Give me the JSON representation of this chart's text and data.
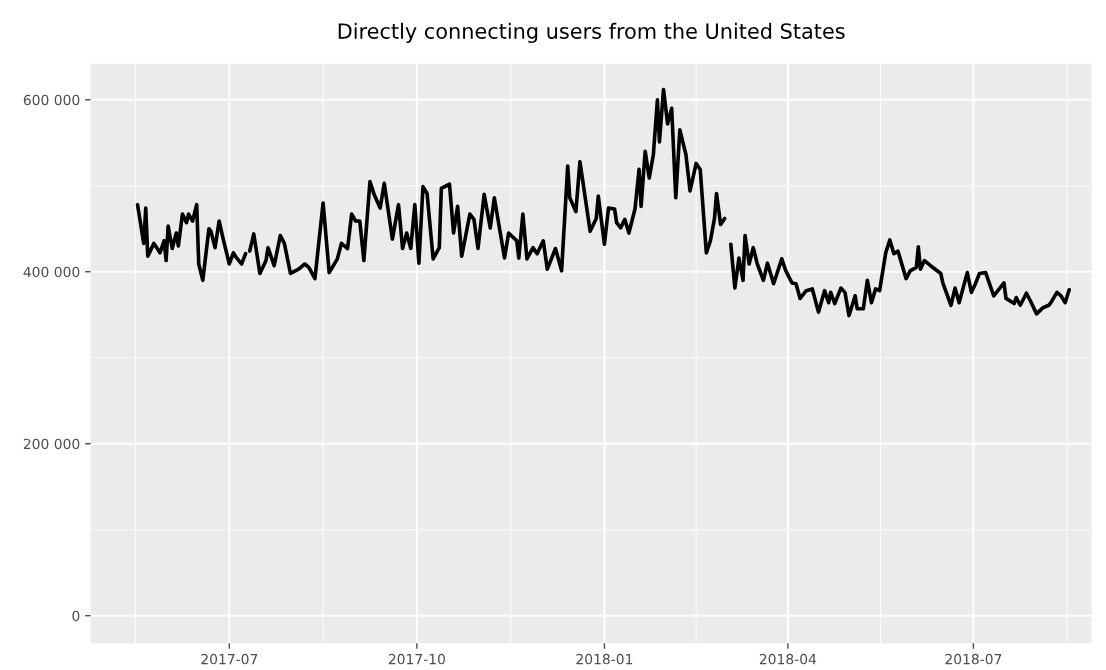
{
  "chart_data": {
    "type": "line",
    "title": "Directly connecting users from the United States",
    "xlim": [
      "2017-04-24",
      "2018-08-28"
    ],
    "xticks": [
      {
        "value": "2017-07-01",
        "label": "2017-07"
      },
      {
        "value": "2017-10-01",
        "label": "2017-10"
      },
      {
        "value": "2018-01-01",
        "label": "2018-01"
      },
      {
        "value": "2018-04-01",
        "label": "2018-04"
      },
      {
        "value": "2018-07-01",
        "label": "2018-07"
      }
    ],
    "ylim": [
      -32000,
      642000
    ],
    "yticks": [
      {
        "value": 0,
        "label": "0"
      },
      {
        "value": 200000,
        "label": "200 000"
      },
      {
        "value": 400000,
        "label": "400 000"
      },
      {
        "value": 600000,
        "label": "600 000"
      }
    ],
    "grid": true,
    "marker": "none",
    "line_style": "solid",
    "series": [
      {
        "color": "#000000",
        "x": [
          "2017-05-17",
          "2017-05-20",
          "2017-05-21",
          "2017-05-22",
          "2017-05-25",
          "2017-05-28",
          "2017-05-30",
          "2017-05-31",
          "2017-06-01",
          "2017-06-03",
          "2017-06-05",
          "2017-06-06",
          "2017-06-08",
          "2017-06-10",
          "2017-06-11",
          "2017-06-13",
          "2017-06-15",
          "2017-06-16",
          "2017-06-18",
          "2017-06-21",
          "2017-06-22",
          "2017-06-24",
          "2017-06-26",
          "2017-06-28",
          "2017-07-01",
          "2017-07-03",
          "2017-07-04",
          "2017-07-07",
          "2017-07-09",
          "2017-07-10",
          "2017-07-11",
          "2017-07-13",
          "2017-07-16",
          "2017-07-19",
          "2017-07-20",
          "2017-07-23",
          "2017-07-26",
          "2017-07-28",
          "2017-07-31",
          "2017-08-04",
          "2017-08-07",
          "2017-08-09",
          "2017-08-12",
          "2017-08-16",
          "2017-08-19",
          "2017-08-23",
          "2017-08-25",
          "2017-08-28",
          "2017-08-30",
          "2017-09-01",
          "2017-09-03",
          "2017-09-05",
          "2017-09-08",
          "2017-09-10",
          "2017-09-13",
          "2017-09-15",
          "2017-09-19",
          "2017-09-22",
          "2017-09-24",
          "2017-09-26",
          "2017-09-28",
          "2017-09-30",
          "2017-10-02",
          "2017-10-04",
          "2017-10-06",
          "2017-10-09",
          "2017-10-12",
          "2017-10-13",
          "2017-10-17",
          "2017-10-19",
          "2017-10-21",
          "2017-10-23",
          "2017-10-27",
          "2017-10-29",
          "2017-10-31",
          "2017-11-03",
          "2017-11-06",
          "2017-11-08",
          "2017-11-13",
          "2017-11-15",
          "2017-11-19",
          "2017-11-20",
          "2017-11-22",
          "2017-11-24",
          "2017-11-27",
          "2017-11-29",
          "2017-12-02",
          "2017-12-04",
          "2017-12-08",
          "2017-12-11",
          "2017-12-14",
          "2017-12-15",
          "2017-12-18",
          "2017-12-20",
          "2017-12-25",
          "2017-12-28",
          "2017-12-29",
          "2018-01-01",
          "2018-01-03",
          "2018-01-06",
          "2018-01-07",
          "2018-01-09",
          "2018-01-11",
          "2018-01-13",
          "2018-01-16",
          "2018-01-18",
          "2018-01-19",
          "2018-01-21",
          "2018-01-23",
          "2018-01-25",
          "2018-01-27",
          "2018-01-28",
          "2018-01-30",
          "2018-02-01",
          "2018-02-03",
          "2018-02-05",
          "2018-02-07",
          "2018-02-10",
          "2018-02-12",
          "2018-02-15",
          "2018-02-17",
          "2018-02-20",
          "2018-02-22",
          "2018-02-24",
          "2018-02-25",
          "2018-02-27",
          "2018-03-01",
          "2018-03-02",
          "2018-03-04",
          "2018-03-06",
          "2018-03-08",
          "2018-03-10",
          "2018-03-11",
          "2018-03-13",
          "2018-03-15",
          "2018-03-17",
          "2018-03-20",
          "2018-03-22",
          "2018-03-25",
          "2018-03-29",
          "2018-03-31",
          "2018-04-03",
          "2018-04-05",
          "2018-04-07",
          "2018-04-10",
          "2018-04-13",
          "2018-04-16",
          "2018-04-19",
          "2018-04-21",
          "2018-04-22",
          "2018-04-24",
          "2018-04-27",
          "2018-04-29",
          "2018-05-01",
          "2018-05-04",
          "2018-05-05",
          "2018-05-08",
          "2018-05-10",
          "2018-05-12",
          "2018-05-14",
          "2018-05-16",
          "2018-05-19",
          "2018-05-21",
          "2018-05-23",
          "2018-05-25",
          "2018-05-29",
          "2018-05-31",
          "2018-06-03",
          "2018-06-04",
          "2018-06-05",
          "2018-06-07",
          "2018-06-10",
          "2018-06-15",
          "2018-06-16",
          "2018-06-20",
          "2018-06-22",
          "2018-06-24",
          "2018-06-28",
          "2018-06-30",
          "2018-07-02",
          "2018-07-04",
          "2018-07-07",
          "2018-07-11",
          "2018-07-16",
          "2018-07-17",
          "2018-07-21",
          "2018-07-22",
          "2018-07-24",
          "2018-07-27",
          "2018-07-29",
          "2018-08-01",
          "2018-08-04",
          "2018-08-07",
          "2018-08-08",
          "2018-08-11",
          "2018-08-13",
          "2018-08-15",
          "2018-08-17"
        ],
        "values": [
          478000,
          433000,
          474000,
          418000,
          433000,
          422000,
          436000,
          413000,
          453000,
          427000,
          445000,
          430000,
          467000,
          457000,
          467000,
          459000,
          478000,
          409000,
          390000,
          450000,
          447000,
          428000,
          459000,
          438000,
          409000,
          422000,
          418000,
          409000,
          421000,
          null,
          424000,
          444000,
          398000,
          413000,
          428000,
          407000,
          442000,
          433000,
          398000,
          403000,
          409000,
          405000,
          392000,
          480000,
          399000,
          415000,
          433000,
          427000,
          467000,
          459000,
          459000,
          413000,
          505000,
          490000,
          474000,
          503000,
          438000,
          478000,
          427000,
          445000,
          427000,
          478000,
          410000,
          499000,
          491000,
          415000,
          428000,
          497000,
          502000,
          445000,
          476000,
          418000,
          467000,
          461000,
          427000,
          490000,
          451000,
          486000,
          416000,
          445000,
          436000,
          416000,
          467000,
          415000,
          428000,
          421000,
          436000,
          403000,
          427000,
          401000,
          523000,
          486000,
          470000,
          528000,
          447000,
          462000,
          488000,
          432000,
          474000,
          473000,
          457000,
          451000,
          461000,
          445000,
          473000,
          519000,
          476000,
          540000,
          509000,
          536000,
          600000,
          551000,
          612000,
          572000,
          590000,
          486000,
          565000,
          536000,
          494000,
          526000,
          519000,
          422000,
          436000,
          462000,
          491000,
          455000,
          462000,
          null,
          432000,
          381000,
          416000,
          390000,
          442000,
          409000,
          428000,
          409000,
          390000,
          410000,
          386000,
          415000,
          401000,
          387000,
          386000,
          369000,
          378000,
          380000,
          353000,
          378000,
          364000,
          376000,
          363000,
          381000,
          376000,
          349000,
          372000,
          357000,
          357000,
          390000,
          364000,
          380000,
          378000,
          422000,
          437000,
          421000,
          424000,
          392000,
          401000,
          405000,
          429000,
          403000,
          413000,
          407000,
          398000,
          387000,
          361000,
          381000,
          364000,
          399000,
          376000,
          386000,
          398000,
          399000,
          372000,
          387000,
          369000,
          363000,
          370000,
          361000,
          375000,
          366000,
          351000,
          358000,
          361000,
          364000,
          376000,
          372000,
          364000,
          379000
        ]
      }
    ]
  }
}
